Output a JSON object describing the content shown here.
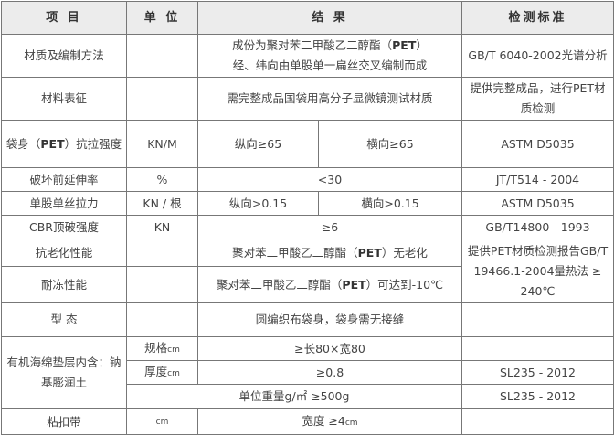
{
  "headers": [
    "项 目",
    "单 位",
    "结 果",
    "检测标准"
  ],
  "rows": {
    "r1": {
      "item": "材质及编制方法",
      "result_a": "成份为聚对苯二甲酸乙二醇酯（",
      "pet": "PET",
      "result_b": "）",
      "result_c": "经、纬向由单股单一扁丝交叉编制而成",
      "std": "GB/T 6040-2002光谱分析"
    },
    "r2": {
      "item": "材料表征",
      "result": "需完整成品国袋用高分子显微镜测试材质",
      "std": "提供完整成品，进行PET材质检测"
    },
    "r3": {
      "item_a": "袋身（",
      "pet": "PET",
      "item_b": "）抗拉强度",
      "unit": "KN/M",
      "long": "纵向≥65",
      "trans": "横向≥65",
      "std": "ASTM  D5035"
    },
    "r4": {
      "item": "破坏前延伸率",
      "unit": "%",
      "result": "<30",
      "std": "JT/T514 - 2004"
    },
    "r5": {
      "item": "单股单丝拉力",
      "unit": "KN / 根",
      "long": "纵向>0.15",
      "trans": "横向>0.15",
      "std": "ASTM  D5035"
    },
    "r6": {
      "item": "CBR顶破强度",
      "unit": "KN",
      "result": "≥6",
      "std": "GB/T14800 - 1993"
    },
    "r7": {
      "item": "抗老化性能",
      "result_a": "聚对苯二甲酸乙二醇酯（",
      "pet": "PET",
      "result_b": "）无老化",
      "std": "提供PET材质检测报告GB/T 19466.1-2004量热法 ≥ 240℃"
    },
    "r8": {
      "item": "耐冻性能",
      "result_a": "聚对苯二甲酸乙二醇酯（",
      "pet": "PET",
      "result_b": "）可达到-10℃"
    },
    "r9": {
      "item": "型 态",
      "result": "圆编织布袋身，袋身需无接缝"
    },
    "r10": {
      "item": "有机海绵垫层内含：钠基膨润土",
      "unit": "规格",
      "unit_sfx": "cm",
      "result": "≥长80×宽80"
    },
    "r11": {
      "unit": "厚度",
      "unit_sfx": "cm",
      "result": "≥0.8",
      "std": "SL235 - 2012"
    },
    "r12": {
      "result": "单位重量g/㎡ ≥500g",
      "std": "SL235 - 2012"
    },
    "r13": {
      "item": "粘扣带",
      "unit": "cm",
      "result": "宽度 ≥4",
      "result_sfx": "cm"
    }
  }
}
